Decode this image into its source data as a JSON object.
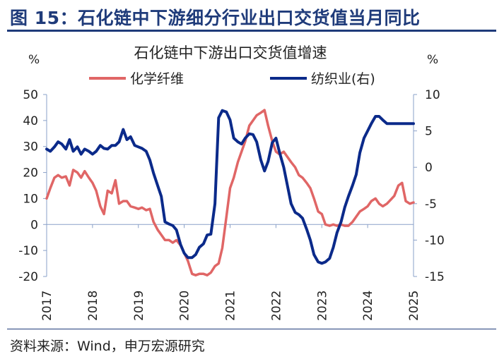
{
  "heading": "图 15：石化链中下游细分行业出口交货值当月同比",
  "source": "资料来源：Wind，申万宏源研究",
  "chart_data": {
    "type": "line",
    "title": "石化链中下游出口交货值增速",
    "left_unit": "%",
    "right_unit": "%",
    "x_ticks": [
      "2017",
      "2018",
      "2019",
      "2020",
      "2021",
      "2022",
      "2023",
      "2024",
      "2025"
    ],
    "left_axis": {
      "ylim": [
        -20,
        50
      ],
      "ticks": [
        "50",
        "40",
        "30",
        "20",
        "10",
        "0",
        "-10",
        "-20"
      ]
    },
    "right_axis": {
      "ylim": [
        -15,
        10
      ],
      "ticks": [
        "10",
        "5",
        "0",
        "-5",
        "-10",
        "-15"
      ]
    },
    "grid": false,
    "legend_position": "top",
    "series": [
      {
        "name": "化学纤维",
        "axis": "left",
        "color": "#e06666",
        "x": [
          2017.0,
          2017.08,
          2017.17,
          2017.25,
          2017.33,
          2017.42,
          2017.5,
          2017.58,
          2017.67,
          2017.75,
          2017.83,
          2017.92,
          2018.0,
          2018.08,
          2018.17,
          2018.25,
          2018.33,
          2018.42,
          2018.5,
          2018.58,
          2018.67,
          2018.75,
          2018.83,
          2018.92,
          2019.0,
          2019.08,
          2019.17,
          2019.25,
          2019.33,
          2019.42,
          2019.5,
          2019.58,
          2019.67,
          2019.75,
          2019.83,
          2019.92,
          2020.0,
          2020.08,
          2020.17,
          2020.25,
          2020.33,
          2020.42,
          2020.5,
          2020.58,
          2020.67,
          2020.75,
          2020.83,
          2020.92,
          2021.0,
          2021.08,
          2021.17,
          2021.25,
          2021.33,
          2021.42,
          2021.5,
          2021.58,
          2021.67,
          2021.75,
          2021.83,
          2021.92,
          2022.0,
          2022.08,
          2022.17,
          2022.25,
          2022.33,
          2022.42,
          2022.5,
          2022.58,
          2022.67,
          2022.75,
          2022.83,
          2022.92,
          2023.0,
          2023.08,
          2023.17,
          2023.25,
          2023.33,
          2023.42,
          2023.5,
          2023.58,
          2023.67,
          2023.75,
          2023.83,
          2023.92,
          2024.0,
          2024.08,
          2024.17,
          2024.25,
          2024.33,
          2024.42,
          2024.5,
          2024.58,
          2024.67,
          2024.75,
          2024.83,
          2024.92,
          2025.0
        ],
        "values": [
          10,
          14,
          18,
          19,
          18,
          18.5,
          15,
          21,
          20,
          18,
          20.5,
          18,
          16,
          13,
          7,
          4,
          13,
          12,
          17,
          8,
          9,
          9,
          7,
          6.5,
          6,
          6.5,
          5.5,
          6,
          1,
          -2,
          -4,
          -6,
          -6,
          -7,
          -6,
          -8,
          -11,
          -14,
          -19,
          -19.5,
          -19,
          -19,
          -19.5,
          -18.5,
          -16,
          -15,
          -9,
          3,
          14,
          18,
          24,
          28,
          32,
          38,
          40,
          42,
          43,
          44,
          38,
          32,
          28,
          27,
          28,
          26,
          24,
          22,
          19,
          18,
          16,
          14,
          10,
          5,
          4,
          0,
          -0.5,
          0,
          -0.5,
          0,
          -0.5,
          -0.5,
          1,
          3,
          5,
          6,
          7,
          9,
          10,
          8,
          7,
          8,
          9.5,
          11,
          15,
          16,
          9,
          8,
          8.5
        ]
      },
      {
        "name": "纺织业(右)",
        "axis": "right",
        "color": "#0b2a8a",
        "x": [
          2017.0,
          2017.08,
          2017.17,
          2017.25,
          2017.33,
          2017.42,
          2017.5,
          2017.58,
          2017.67,
          2017.75,
          2017.83,
          2017.92,
          2018.0,
          2018.08,
          2018.17,
          2018.25,
          2018.33,
          2018.42,
          2018.5,
          2018.58,
          2018.67,
          2018.75,
          2018.83,
          2018.92,
          2019.0,
          2019.08,
          2019.17,
          2019.25,
          2019.33,
          2019.42,
          2019.5,
          2019.58,
          2019.67,
          2019.75,
          2019.83,
          2019.92,
          2020.0,
          2020.08,
          2020.17,
          2020.25,
          2020.33,
          2020.42,
          2020.5,
          2020.58,
          2020.67,
          2020.75,
          2020.83,
          2020.92,
          2021.0,
          2021.08,
          2021.17,
          2021.25,
          2021.33,
          2021.42,
          2021.5,
          2021.58,
          2021.67,
          2021.75,
          2021.83,
          2021.92,
          2022.0,
          2022.08,
          2022.17,
          2022.25,
          2022.33,
          2022.42,
          2022.5,
          2022.58,
          2022.67,
          2022.75,
          2022.83,
          2022.92,
          2023.0,
          2023.08,
          2023.17,
          2023.25,
          2023.33,
          2023.42,
          2023.5,
          2023.58,
          2023.67,
          2023.75,
          2023.83,
          2023.92,
          2024.0,
          2024.08,
          2024.17,
          2024.25,
          2024.33,
          2024.42,
          2024.5,
          2024.58,
          2024.67,
          2024.75,
          2024.83,
          2024.92,
          2025.0
        ],
        "values": [
          2.5,
          2.2,
          2.8,
          3.5,
          3.2,
          2.5,
          3.8,
          2.2,
          2.8,
          1.8,
          2.5,
          2.2,
          1.8,
          2.2,
          3.0,
          2.6,
          2.5,
          3.0,
          3.0,
          3.5,
          5.2,
          3.8,
          4.2,
          3.0,
          2.8,
          2.6,
          2.2,
          1.0,
          -0.8,
          -2.5,
          -4.0,
          -7.5,
          -7.8,
          -8.0,
          -8.6,
          -10.6,
          -11.8,
          -12.4,
          -12.4,
          -12.0,
          -11.0,
          -10.5,
          -9.3,
          -9.2,
          -5.0,
          6.8,
          7.8,
          7.6,
          6.5,
          4.0,
          3.5,
          3.2,
          4.0,
          4.6,
          4.5,
          3.5,
          1.0,
          -0.5,
          0.8,
          3.4,
          4.0,
          2.0,
          0.0,
          -2.5,
          -5.0,
          -6.2,
          -6.5,
          -7.0,
          -8.5,
          -10.0,
          -12.0,
          -13.0,
          -13.2,
          -13.0,
          -12.5,
          -11.0,
          -9.0,
          -7.5,
          -5.5,
          -4.0,
          -2.5,
          -1.0,
          2.0,
          4.0,
          5.0,
          6.0,
          7.0,
          7.0,
          6.5,
          6.0,
          6.0,
          6.0,
          6.0,
          6.0,
          6.0,
          6.0,
          6.0
        ]
      }
    ]
  }
}
